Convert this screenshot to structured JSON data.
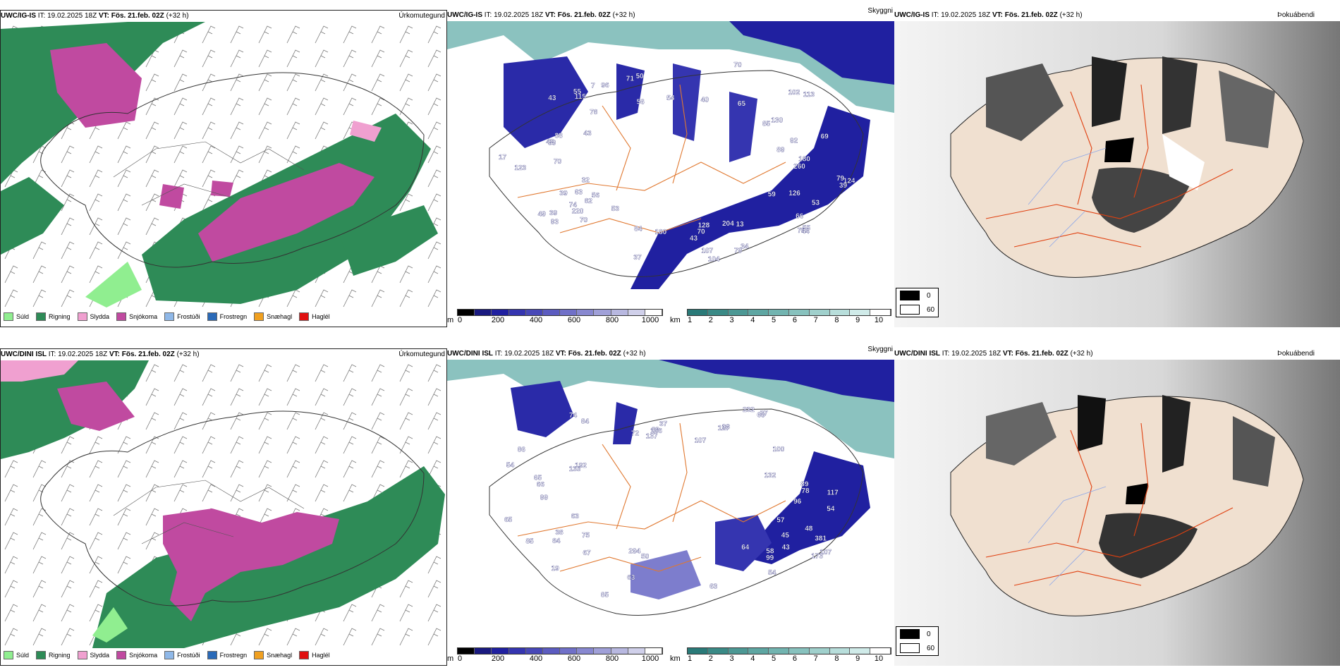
{
  "panels": {
    "top_precip": {
      "model": "UWC/IG-IS",
      "it_label": "IT:",
      "it_value": "19.02.2025 18Z",
      "vt_label": "VT:",
      "vt_value": "Fös. 21.feb. 02Z",
      "lead": "(+32 h)",
      "title": "Úrkomutegund"
    },
    "top_cloud": {
      "model": "UWC/IG-IS",
      "it_label": "IT:",
      "it_value": "19.02.2025 18Z",
      "vt_label": "VT:",
      "vt_value": "Fös. 21.feb. 02Z",
      "lead": "(+32 h)",
      "title": "Skyggni"
    },
    "top_fog": {
      "model": "UWC/IG-IS",
      "it_label": "IT:",
      "it_value": "19.02.2025 18Z",
      "vt_label": "VT:",
      "vt_value": "Fös. 21.feb. 02Z",
      "lead": "(+32 h)",
      "title": "Þokuábendi"
    },
    "bottom_precip": {
      "model": "UWC/DINI ISL",
      "it_label": "IT:",
      "it_value": "19.02.2025 18Z",
      "vt_label": "VT:",
      "vt_value": "Fös. 21.feb. 02Z",
      "lead": "(+32 h)",
      "title": "Úrkomutegund"
    },
    "bottom_cloud": {
      "model": "UWC/DINI ISL",
      "it_label": "IT:",
      "it_value": "19.02.2025 18Z",
      "vt_label": "VT:",
      "vt_value": "Fös. 21.feb. 02Z",
      "lead": "(+32 h)",
      "title": "Skyggni"
    },
    "bottom_fog": {
      "model": "UWC/DINI ISL",
      "it_label": "IT:",
      "it_value": "19.02.2025 18Z",
      "vt_label": "VT:",
      "vt_value": "Fös. 21.feb. 02Z",
      "lead": "(+32 h)",
      "title": "Þokuábendi"
    }
  },
  "precip_legend": [
    {
      "label": "Súld",
      "color": "#90ee90"
    },
    {
      "label": "Rigning",
      "color": "#2e8b57"
    },
    {
      "label": "Slydda",
      "color": "#f0a0d0"
    },
    {
      "label": "Snjókoma",
      "color": "#c04aa0"
    },
    {
      "label": "Frostúði",
      "color": "#8fb8e8"
    },
    {
      "label": "Frostregn",
      "color": "#2a6ab8"
    },
    {
      "label": "Snæhagl",
      "color": "#f0a020"
    },
    {
      "label": "Haglél",
      "color": "#e01010"
    }
  ],
  "ceiling_bar": {
    "unit": "m",
    "labels": [
      "0",
      "200",
      "400",
      "600",
      "800",
      "1000"
    ],
    "colors": [
      "#000000",
      "#1a1a80",
      "#2020a0",
      "#3535b0",
      "#4848b8",
      "#5c5cc0",
      "#7070c8",
      "#8888d0",
      "#a0a0d8",
      "#b8b8e0",
      "#d0d0ea",
      "#ffffff"
    ]
  },
  "vis_bar": {
    "unit": "km",
    "labels": [
      "1",
      "2",
      "3",
      "4",
      "5",
      "6",
      "7",
      "8",
      "9",
      "10"
    ],
    "colors": [
      "#2a7a78",
      "#3a8a86",
      "#4c9894",
      "#5ea6a2",
      "#72b4b0",
      "#88c2be",
      "#a0d0cc",
      "#b8dedb",
      "#d0ebe9",
      "#ffffff"
    ]
  },
  "fog_legend": [
    {
      "label": "0",
      "color": "#000000"
    },
    {
      "label": "60",
      "color": "#ffffff"
    }
  ],
  "top_ceiling_values": [
    "113",
    "126",
    "85",
    "70",
    "78",
    "75",
    "82",
    "70",
    "66",
    "84",
    "79",
    "79",
    "63",
    "88",
    "50",
    "59",
    "56",
    "180",
    "115",
    "130",
    "220",
    "93",
    "74",
    "128",
    "56",
    "107",
    "70",
    "102",
    "71",
    "17",
    "180",
    "13",
    "55",
    "104",
    "92",
    "39",
    "39",
    "49",
    "42",
    "53",
    "65",
    "89",
    "7",
    "43",
    "34",
    "44",
    "124",
    "123",
    "40",
    "32",
    "43",
    "260",
    "204",
    "54",
    "55",
    "43",
    "53",
    "39",
    "69",
    "39",
    "37",
    "96",
    "70"
  ],
  "bottom_ceiling_values": [
    "294",
    "137",
    "89",
    "84",
    "65",
    "99",
    "57",
    "72",
    "48",
    "133",
    "99",
    "107",
    "50",
    "63",
    "54",
    "86",
    "85",
    "107",
    "37",
    "63",
    "58",
    "43",
    "78",
    "100",
    "54",
    "45",
    "38",
    "38",
    "60",
    "381",
    "232",
    "192",
    "54",
    "67",
    "84",
    "117",
    "127",
    "19",
    "132",
    "63",
    "173",
    "85",
    "74",
    "64",
    "65",
    "83",
    "27",
    "166",
    "96",
    "66",
    "75"
  ]
}
